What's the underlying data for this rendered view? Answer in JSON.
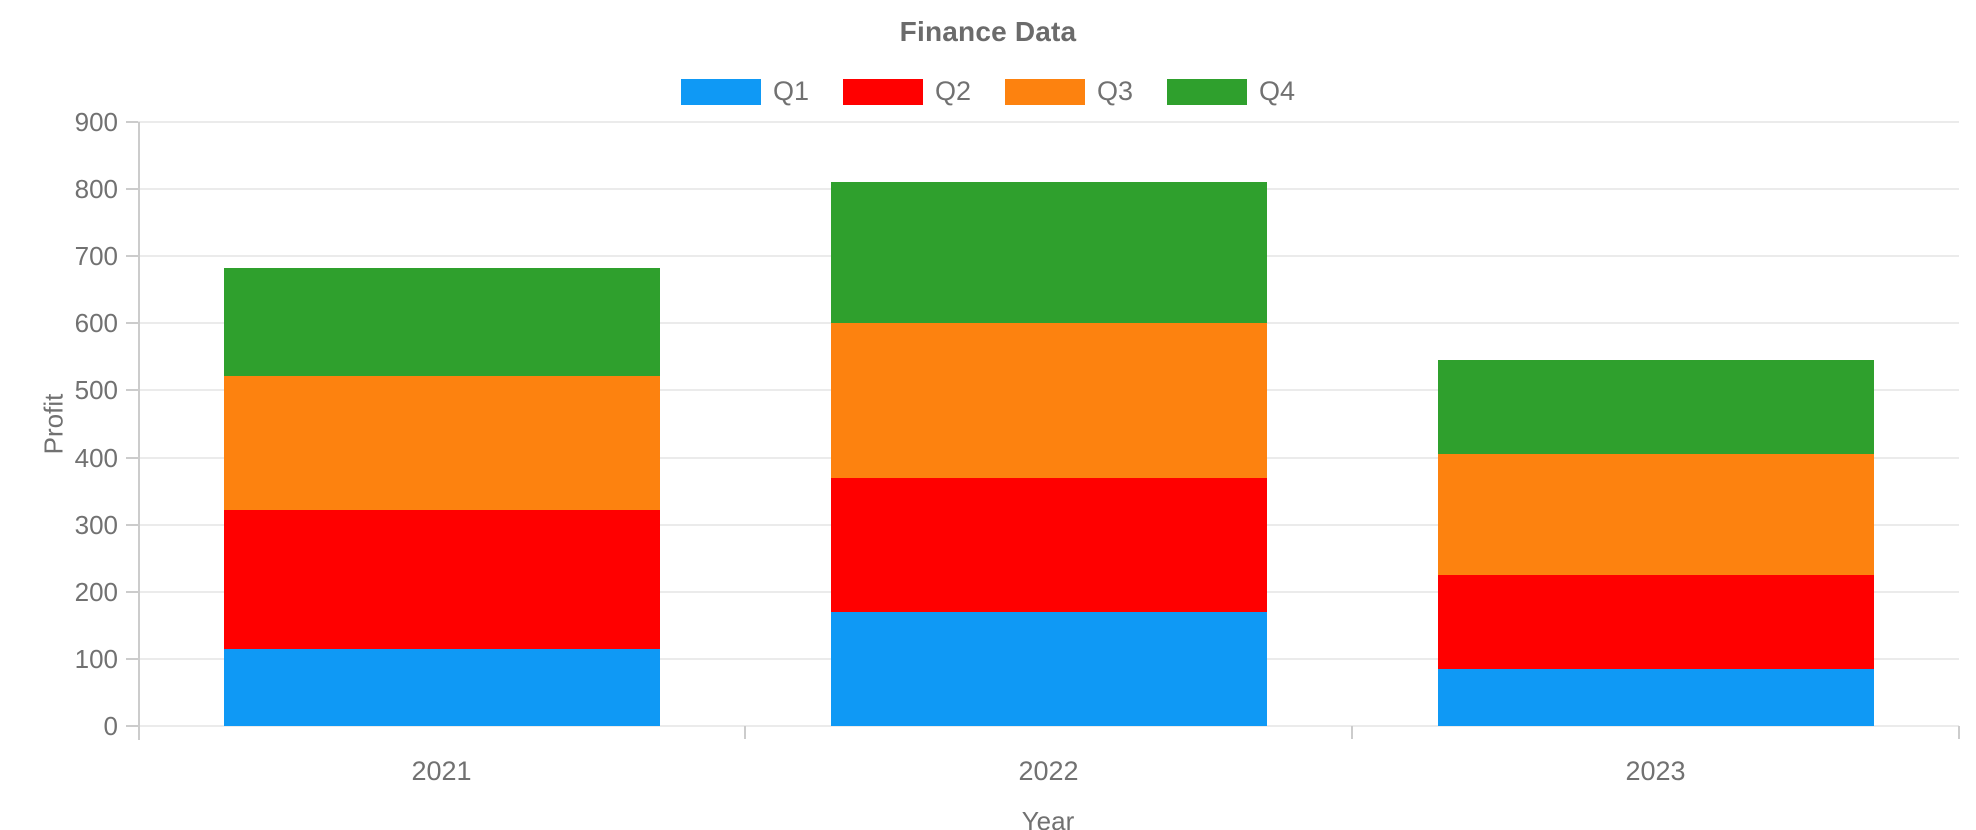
{
  "chart_data": {
    "type": "bar",
    "stacked": true,
    "title": "Finance Data",
    "xlabel": "Year",
    "ylabel": "Profit",
    "categories": [
      "2021",
      "2022",
      "2023"
    ],
    "series": [
      {
        "name": "Q1",
        "color": "#0f99f5",
        "values": [
          115,
          170,
          85
        ]
      },
      {
        "name": "Q2",
        "color": "#ff0000",
        "values": [
          207,
          200,
          140
        ]
      },
      {
        "name": "Q3",
        "color": "#fd820f",
        "values": [
          200,
          230,
          180
        ]
      },
      {
        "name": "Q4",
        "color": "#2fa02d",
        "values": [
          160,
          210,
          140
        ]
      }
    ],
    "stack_totals": [
      682,
      810,
      545
    ],
    "ylim": [
      0,
      900
    ],
    "yticks": [
      0,
      100,
      200,
      300,
      400,
      500,
      600,
      700,
      800,
      900
    ],
    "grid": true,
    "legend_position": "top-center"
  },
  "styles": {
    "title_color": "#6b6b6b",
    "label_color": "#717171",
    "grid_color": "#ebebeb",
    "axis_line_color": "#cccccc",
    "background": "#ffffff"
  }
}
